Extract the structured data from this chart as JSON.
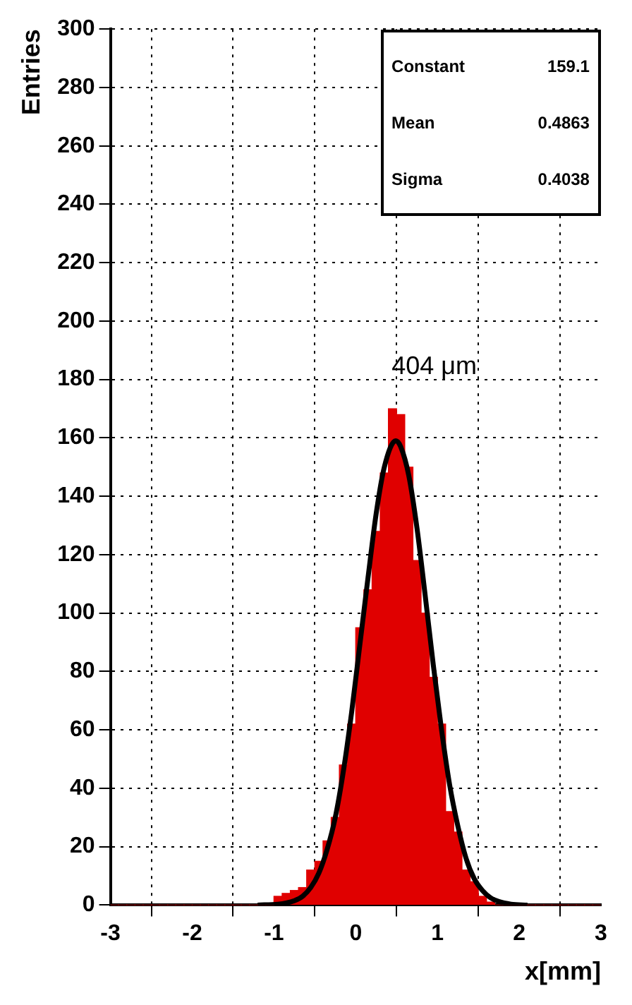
{
  "chart_data": {
    "type": "histogram",
    "xlabel": "x[mm]",
    "ylabel": "Entries",
    "bins": [
      -3.0,
      -2.9,
      -2.8,
      -2.7,
      -2.6,
      -2.5,
      -2.4,
      -2.3,
      -2.2,
      -2.1,
      -2.0,
      -1.9,
      -1.8,
      -1.7,
      -1.6,
      -1.5,
      -1.4,
      -1.3,
      -1.2,
      -1.1,
      -1.0,
      -0.9,
      -0.8,
      -0.7,
      -0.6,
      -0.5,
      -0.4,
      -0.3,
      -0.2,
      -0.1,
      0.0,
      0.1,
      0.2,
      0.3,
      0.4,
      0.5,
      0.6,
      0.7,
      0.8,
      0.9,
      1.0,
      1.1,
      1.2,
      1.3,
      1.4,
      1.5,
      1.6,
      1.7,
      1.8,
      1.9,
      2.0,
      2.1,
      2.2,
      2.3,
      2.4,
      2.5,
      2.6,
      2.7,
      2.8,
      2.9,
      3.0
    ],
    "series": [
      {
        "color": "#e00000",
        "values": [
          0,
          0,
          0,
          0,
          0,
          0,
          0,
          0,
          0,
          0,
          0,
          0,
          0,
          0,
          0,
          0,
          0,
          0,
          0,
          0,
          3,
          4,
          5,
          6,
          12,
          15,
          22,
          30,
          48,
          62,
          95,
          108,
          128,
          148,
          170,
          168,
          150,
          118,
          100,
          78,
          62,
          32,
          25,
          12,
          8,
          3,
          1,
          0,
          0,
          0,
          0,
          0,
          0,
          0,
          0,
          0,
          0,
          0,
          0,
          0
        ]
      },
      {
        "type": "line",
        "color": "#000000",
        "x": [
          -1.2,
          -0.95,
          -0.85,
          -0.75,
          -0.65,
          -0.55,
          -0.45,
          -0.35,
          -0.25,
          -0.15,
          -0.05,
          0.05,
          0.15,
          0.25,
          0.35,
          0.49,
          0.55,
          0.65,
          0.75,
          0.85,
          0.95,
          1.05,
          1.15,
          1.25,
          1.35,
          1.45,
          1.55,
          1.65,
          1.75,
          1.9,
          2.1
        ],
        "values": [
          0,
          0.3,
          0.7,
          1.5,
          3,
          6,
          11,
          19,
          30,
          46,
          66,
          89,
          112,
          134,
          150,
          159,
          157,
          147,
          129,
          106,
          82,
          60,
          41,
          27,
          16,
          9,
          5,
          2.5,
          1.2,
          0.3,
          0
        ]
      }
    ],
    "xlim": [
      -3,
      3
    ],
    "xticks": [
      -3,
      -2,
      -1,
      0,
      1,
      2,
      3
    ],
    "ylim": [
      0,
      300
    ],
    "yticks": [
      0,
      20,
      40,
      60,
      80,
      100,
      120,
      140,
      160,
      180,
      200,
      220,
      240,
      260,
      280,
      300
    ],
    "grid": true,
    "legend": false,
    "annotations": [
      "Constant 159.1",
      "Mean 0.4863",
      "Sigma 0.4038",
      "404 μm"
    ]
  }
}
